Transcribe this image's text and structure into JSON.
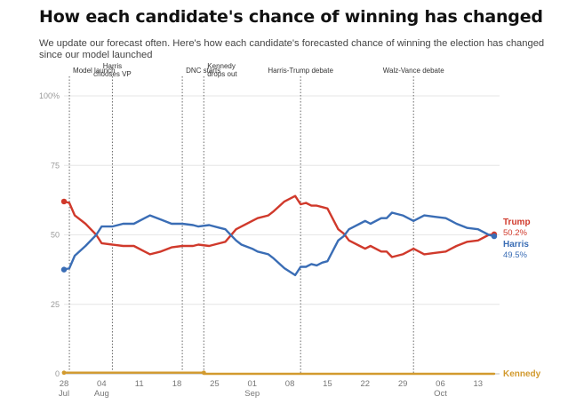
{
  "header": {
    "title": "How each candidate's chance of winning has changed",
    "subtitle": "We update our forecast often. Here's how each candidate's forecasted chance of winning the election has changed since our model launched"
  },
  "chart_data": {
    "type": "line",
    "ylim": [
      0,
      100
    ],
    "y_ticks": [
      "0",
      "25",
      "50",
      "75",
      "100%"
    ],
    "x_range": [
      "2024-07-28",
      "2024-10-17"
    ],
    "x_ticks": [
      {
        "date": "2024-07-28",
        "day": "28",
        "month": "Jul"
      },
      {
        "date": "2024-08-04",
        "day": "04",
        "month": "Aug"
      },
      {
        "date": "2024-08-11",
        "day": "11",
        "month": ""
      },
      {
        "date": "2024-08-18",
        "day": "18",
        "month": ""
      },
      {
        "date": "2024-08-25",
        "day": "25",
        "month": ""
      },
      {
        "date": "2024-09-01",
        "day": "01",
        "month": "Sep"
      },
      {
        "date": "2024-09-08",
        "day": "08",
        "month": ""
      },
      {
        "date": "2024-09-15",
        "day": "15",
        "month": ""
      },
      {
        "date": "2024-09-22",
        "day": "22",
        "month": ""
      },
      {
        "date": "2024-09-29",
        "day": "29",
        "month": ""
      },
      {
        "date": "2024-10-06",
        "day": "06",
        "month": "Oct"
      },
      {
        "date": "2024-10-13",
        "day": "13",
        "month": ""
      }
    ],
    "annotations": [
      {
        "date": "2024-07-29",
        "label": "Model launch",
        "anchor": "start"
      },
      {
        "date": "2024-08-06",
        "label": "Harris chooses VP",
        "anchor": "middle"
      },
      {
        "date": "2024-08-19",
        "label": "DNC starts",
        "anchor": "start"
      },
      {
        "date": "2024-08-23",
        "label": "Kennedy drops out",
        "anchor": "start"
      },
      {
        "date": "2024-09-10",
        "label": "Harris-Trump debate",
        "anchor": "middle"
      },
      {
        "date": "2024-10-01",
        "label": "Walz-Vance debate",
        "anchor": "middle"
      }
    ],
    "series": [
      {
        "name": "Trump",
        "value_label": "50.2%",
        "color": "#d0392b",
        "points": [
          [
            "2024-07-28",
            62.0
          ],
          [
            "2024-07-29",
            61.5
          ],
          [
            "2024-07-30",
            57.0
          ],
          [
            "2024-08-01",
            54.0
          ],
          [
            "2024-08-03",
            50.0
          ],
          [
            "2024-08-04",
            47.0
          ],
          [
            "2024-08-06",
            46.5
          ],
          [
            "2024-08-08",
            46.0
          ],
          [
            "2024-08-10",
            46.0
          ],
          [
            "2024-08-12",
            44.0
          ],
          [
            "2024-08-13",
            43.0
          ],
          [
            "2024-08-15",
            44.0
          ],
          [
            "2024-08-17",
            45.5
          ],
          [
            "2024-08-19",
            46.0
          ],
          [
            "2024-08-21",
            46.0
          ],
          [
            "2024-08-22",
            46.5
          ],
          [
            "2024-08-24",
            46.0
          ],
          [
            "2024-08-26",
            47.0
          ],
          [
            "2024-08-27",
            47.5
          ],
          [
            "2024-08-29",
            52.0
          ],
          [
            "2024-08-30",
            53.0
          ],
          [
            "2024-09-01",
            55.0
          ],
          [
            "2024-09-02",
            56.0
          ],
          [
            "2024-09-04",
            57.0
          ],
          [
            "2024-09-05",
            58.5
          ],
          [
            "2024-09-07",
            62.0
          ],
          [
            "2024-09-09",
            64.0
          ],
          [
            "2024-09-10",
            61.0
          ],
          [
            "2024-09-11",
            61.5
          ],
          [
            "2024-09-12",
            60.5
          ],
          [
            "2024-09-13",
            60.5
          ],
          [
            "2024-09-14",
            60.0
          ],
          [
            "2024-09-15",
            59.5
          ],
          [
            "2024-09-17",
            52.0
          ],
          [
            "2024-09-18",
            50.5
          ],
          [
            "2024-09-19",
            48.0
          ],
          [
            "2024-09-21",
            46.0
          ],
          [
            "2024-09-22",
            45.0
          ],
          [
            "2024-09-23",
            46.0
          ],
          [
            "2024-09-25",
            44.0
          ],
          [
            "2024-09-26",
            44.0
          ],
          [
            "2024-09-27",
            42.0
          ],
          [
            "2024-09-29",
            43.0
          ],
          [
            "2024-10-01",
            45.0
          ],
          [
            "2024-10-03",
            43.0
          ],
          [
            "2024-10-05",
            43.5
          ],
          [
            "2024-10-07",
            44.0
          ],
          [
            "2024-10-08",
            45.0
          ],
          [
            "2024-10-09",
            46.0
          ],
          [
            "2024-10-11",
            47.5
          ],
          [
            "2024-10-13",
            48.0
          ],
          [
            "2024-10-15",
            50.0
          ],
          [
            "2024-10-16",
            50.2
          ]
        ]
      },
      {
        "name": "Harris",
        "value_label": "49.5%",
        "color": "#3a6db5",
        "points": [
          [
            "2024-07-28",
            37.5
          ],
          [
            "2024-07-29",
            38.0
          ],
          [
            "2024-07-30",
            42.5
          ],
          [
            "2024-08-01",
            46.0
          ],
          [
            "2024-08-03",
            50.0
          ],
          [
            "2024-08-04",
            53.0
          ],
          [
            "2024-08-06",
            53.0
          ],
          [
            "2024-08-08",
            54.0
          ],
          [
            "2024-08-10",
            54.0
          ],
          [
            "2024-08-12",
            56.0
          ],
          [
            "2024-08-13",
            57.0
          ],
          [
            "2024-08-15",
            55.5
          ],
          [
            "2024-08-17",
            54.0
          ],
          [
            "2024-08-19",
            54.0
          ],
          [
            "2024-08-21",
            53.5
          ],
          [
            "2024-08-22",
            53.0
          ],
          [
            "2024-08-24",
            53.5
          ],
          [
            "2024-08-26",
            52.5
          ],
          [
            "2024-08-27",
            52.0
          ],
          [
            "2024-08-29",
            48.0
          ],
          [
            "2024-08-30",
            46.5
          ],
          [
            "2024-09-01",
            45.0
          ],
          [
            "2024-09-02",
            44.0
          ],
          [
            "2024-09-04",
            43.0
          ],
          [
            "2024-09-05",
            41.5
          ],
          [
            "2024-09-07",
            38.0
          ],
          [
            "2024-09-09",
            35.5
          ],
          [
            "2024-09-10",
            38.5
          ],
          [
            "2024-09-11",
            38.5
          ],
          [
            "2024-09-12",
            39.5
          ],
          [
            "2024-09-13",
            39.0
          ],
          [
            "2024-09-14",
            40.0
          ],
          [
            "2024-09-15",
            40.5
          ],
          [
            "2024-09-17",
            48.0
          ],
          [
            "2024-09-18",
            49.5
          ],
          [
            "2024-09-19",
            52.0
          ],
          [
            "2024-09-21",
            54.0
          ],
          [
            "2024-09-22",
            55.0
          ],
          [
            "2024-09-23",
            54.0
          ],
          [
            "2024-09-25",
            56.0
          ],
          [
            "2024-09-26",
            56.0
          ],
          [
            "2024-09-27",
            58.0
          ],
          [
            "2024-09-29",
            57.0
          ],
          [
            "2024-10-01",
            55.0
          ],
          [
            "2024-10-03",
            57.0
          ],
          [
            "2024-10-05",
            56.5
          ],
          [
            "2024-10-07",
            56.0
          ],
          [
            "2024-10-08",
            55.0
          ],
          [
            "2024-10-09",
            54.0
          ],
          [
            "2024-10-11",
            52.5
          ],
          [
            "2024-10-13",
            52.0
          ],
          [
            "2024-10-15",
            50.0
          ],
          [
            "2024-10-16",
            49.5
          ]
        ]
      },
      {
        "name": "Kennedy",
        "value_label": "",
        "color": "#d29a2e",
        "points": [
          [
            "2024-07-28",
            0.4
          ],
          [
            "2024-08-23",
            0.4
          ],
          [
            "2024-08-23",
            0.0
          ],
          [
            "2024-10-16",
            0.0
          ]
        ]
      }
    ]
  }
}
